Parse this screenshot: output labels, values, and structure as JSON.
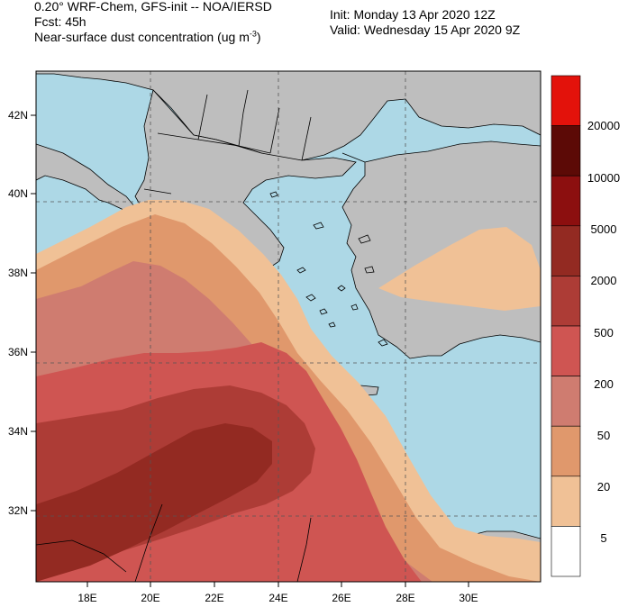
{
  "header": {
    "model": "0.20° WRF-Chem, GFS-init -- NOA/IERSD",
    "forecast": "Fcst: 45h",
    "variable_prefix": "Near-surface dust concentration (ug m",
    "variable_exp": "-3",
    "variable_suffix": ")",
    "init": "Init: Monday 13 Apr 2020  12Z",
    "valid": "Valid: Wednesday 15 Apr 2020  9Z"
  },
  "map": {
    "lon_labels": [
      "18E",
      "20E",
      "22E",
      "24E",
      "26E",
      "28E",
      "30E"
    ],
    "lat_labels": [
      "42N",
      "40N",
      "38N",
      "36N",
      "34N",
      "32N"
    ]
  },
  "colorbar": {
    "labels": [
      "20000",
      "10000",
      "5000",
      "2000",
      "500",
      "200",
      "50",
      "20",
      "5"
    ],
    "colors": [
      "#e3120b",
      "#5c0a06",
      "#8c0f0f",
      "#932a22",
      "#ad3c36",
      "#cf5552",
      "#cf7c70",
      "#e0986c",
      "#f0c196",
      "#ffffff"
    ]
  }
}
